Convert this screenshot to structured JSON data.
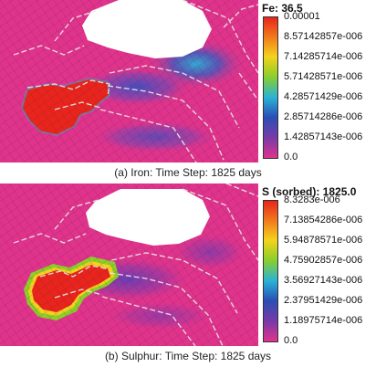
{
  "panels": [
    {
      "id": "iron",
      "legend": {
        "title": "Fe: 36.5",
        "ticks": [
          "0.00001",
          "8.57142857e-006",
          "7.14285714e-006",
          "5.71428571e-006",
          "4.28571429e-006",
          "2.85714286e-006",
          "1.42857143e-006",
          "0.0"
        ],
        "colors": [
          "#e8241c",
          "#f07a1c",
          "#f5d21c",
          "#8ccf2a",
          "#2ab2d6",
          "#2a4fb5",
          "#7a3aa8",
          "#e0338c"
        ]
      },
      "caption": "(a) Iron: Time Step: 1825 days"
    },
    {
      "id": "sulphur",
      "legend": {
        "title": "S (sorbed): 1825.0",
        "ticks": [
          "8.3283e-006",
          "7.13854286e-006",
          "5.94878571e-006",
          "4.75902857e-006",
          "3.56927143e-006",
          "2.37951429e-006",
          "1.18975714e-006",
          "0.0"
        ],
        "colors": [
          "#e8241c",
          "#f07a1c",
          "#f5d21c",
          "#8ccf2a",
          "#2ab2d6",
          "#2a4fb5",
          "#7a3aa8",
          "#e0338c"
        ]
      },
      "caption": "(b) Sulphur: Time Step: 1825 days"
    }
  ]
}
